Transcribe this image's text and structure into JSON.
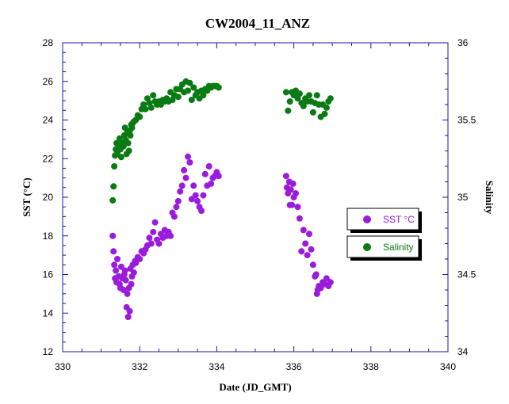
{
  "chart_data": {
    "type": "scatter",
    "title": "CW2004_11_ANZ",
    "xlabel": "Date (JD_GMT)",
    "ylabel": "SST (°C)",
    "y2label": "Salinity",
    "xlim": [
      330,
      340
    ],
    "ylim": [
      12,
      28
    ],
    "y2lim": [
      34,
      36
    ],
    "xticks": [
      "330",
      "332",
      "334",
      "336",
      "338",
      "340"
    ],
    "yticks": [
      "12",
      "14",
      "16",
      "18",
      "20",
      "22",
      "24",
      "26",
      "28"
    ],
    "y2ticks": [
      "34",
      "34.5",
      "35",
      "35.5",
      "36"
    ],
    "grid": false,
    "legend_position": "right",
    "series": [
      {
        "name": "SST °C",
        "axis": "left",
        "color": "#9b1bdc",
        "x": [
          331.3,
          331.32,
          331.34,
          331.36,
          331.38,
          331.4,
          331.42,
          331.45,
          331.48,
          331.5,
          331.52,
          331.55,
          331.58,
          331.6,
          331.62,
          331.64,
          331.66,
          331.68,
          331.7,
          331.72,
          331.74,
          331.76,
          331.78,
          331.8,
          331.82,
          331.85,
          331.88,
          331.9,
          331.95,
          332.0,
          332.05,
          332.1,
          332.15,
          332.2,
          332.25,
          332.3,
          332.35,
          332.4,
          332.45,
          332.5,
          332.55,
          332.6,
          332.65,
          332.7,
          332.75,
          332.8,
          332.85,
          332.9,
          332.95,
          333.0,
          333.05,
          333.1,
          333.15,
          333.2,
          333.25,
          333.3,
          333.35,
          333.4,
          333.45,
          333.5,
          333.55,
          333.6,
          333.65,
          333.7,
          333.75,
          333.8,
          333.85,
          333.9,
          333.95,
          334.0,
          334.05,
          335.8,
          335.82,
          335.85,
          335.88,
          335.9,
          335.92,
          335.95,
          335.98,
          336.0,
          336.05,
          336.1,
          336.15,
          336.2,
          336.25,
          336.3,
          336.35,
          336.4,
          336.45,
          336.5,
          336.55,
          336.58,
          336.6,
          336.62,
          336.65,
          336.7,
          336.75,
          336.8,
          336.85,
          336.9,
          336.95
        ],
        "y": [
          18.0,
          17.2,
          16.5,
          15.8,
          16.2,
          15.6,
          16.8,
          15.9,
          15.5,
          15.3,
          16.4,
          15.8,
          15.2,
          16.0,
          16.2,
          15.7,
          14.3,
          15.0,
          13.8,
          15.3,
          14.1,
          16.3,
          15.5,
          15.9,
          16.5,
          16.1,
          16.7,
          16.6,
          16.9,
          16.8,
          17.2,
          17.1,
          17.3,
          17.5,
          17.9,
          17.6,
          18.2,
          18.7,
          17.8,
          17.6,
          18.1,
          17.9,
          18.3,
          18.0,
          18.2,
          18.0,
          19.2,
          19.0,
          19.5,
          19.8,
          20.3,
          20.6,
          21.4,
          21.0,
          22.1,
          21.8,
          19.9,
          20.6,
          20.1,
          19.8,
          19.5,
          19.3,
          20.1,
          21.2,
          20.6,
          21.6,
          20.7,
          21.0,
          21.1,
          21.3,
          21.1,
          21.1,
          20.5,
          20.2,
          20.8,
          19.6,
          20.4,
          19.6,
          20.7,
          20.0,
          20.2,
          19.5,
          18.9,
          17.2,
          18.3,
          17.6,
          17.0,
          18.1,
          17.3,
          16.5,
          15.9,
          16.0,
          15.0,
          15.2,
          15.4,
          15.3,
          15.6,
          15.5,
          15.8,
          15.4,
          15.6
        ],
        "marker": "circle"
      },
      {
        "name": "Salinity",
        "axis": "right",
        "color": "#0a7a12",
        "x": [
          331.3,
          331.32,
          331.34,
          331.36,
          331.38,
          331.4,
          331.42,
          331.45,
          331.48,
          331.5,
          331.52,
          331.55,
          331.58,
          331.6,
          331.62,
          331.64,
          331.66,
          331.68,
          331.7,
          331.72,
          331.74,
          331.76,
          331.78,
          331.8,
          331.82,
          331.85,
          331.9,
          331.95,
          332.0,
          332.05,
          332.1,
          332.15,
          332.2,
          332.25,
          332.3,
          332.35,
          332.4,
          332.45,
          332.5,
          332.55,
          332.6,
          332.65,
          332.7,
          332.75,
          332.8,
          332.85,
          332.9,
          332.95,
          333.0,
          333.05,
          333.1,
          333.15,
          333.2,
          333.25,
          333.3,
          333.35,
          333.4,
          333.45,
          333.5,
          333.55,
          333.6,
          333.65,
          333.7,
          333.75,
          333.8,
          333.85,
          333.9,
          333.95,
          334.0,
          334.05,
          335.8,
          335.85,
          335.9,
          335.95,
          336.0,
          336.05,
          336.1,
          336.15,
          336.2,
          336.25,
          336.3,
          336.35,
          336.4,
          336.45,
          336.5,
          336.55,
          336.6,
          336.65,
          336.7,
          336.75,
          336.8,
          336.85,
          336.9,
          336.95
        ],
        "y": [
          34.98,
          35.07,
          35.2,
          35.27,
          35.31,
          35.35,
          35.28,
          35.33,
          35.38,
          35.31,
          35.26,
          35.35,
          35.33,
          35.4,
          35.45,
          35.37,
          35.28,
          35.42,
          35.35,
          35.3,
          35.43,
          35.4,
          35.47,
          35.45,
          35.48,
          35.49,
          35.5,
          35.53,
          35.52,
          35.57,
          35.6,
          35.57,
          35.64,
          35.61,
          35.58,
          35.66,
          35.62,
          35.6,
          35.62,
          35.6,
          35.63,
          35.62,
          35.64,
          35.62,
          35.68,
          35.63,
          35.66,
          35.7,
          35.65,
          35.7,
          35.73,
          35.68,
          35.75,
          35.69,
          35.74,
          35.63,
          35.71,
          35.66,
          35.68,
          35.64,
          35.69,
          35.66,
          35.7,
          35.69,
          35.72,
          35.71,
          35.72,
          35.72,
          35.72,
          35.71,
          35.68,
          35.56,
          35.62,
          35.68,
          35.66,
          35.69,
          35.64,
          35.67,
          35.61,
          35.59,
          35.64,
          35.62,
          35.66,
          35.62,
          35.55,
          35.61,
          35.66,
          35.6,
          35.52,
          35.6,
          35.54,
          35.58,
          35.62,
          35.64
        ],
        "marker": "circle"
      }
    ]
  }
}
